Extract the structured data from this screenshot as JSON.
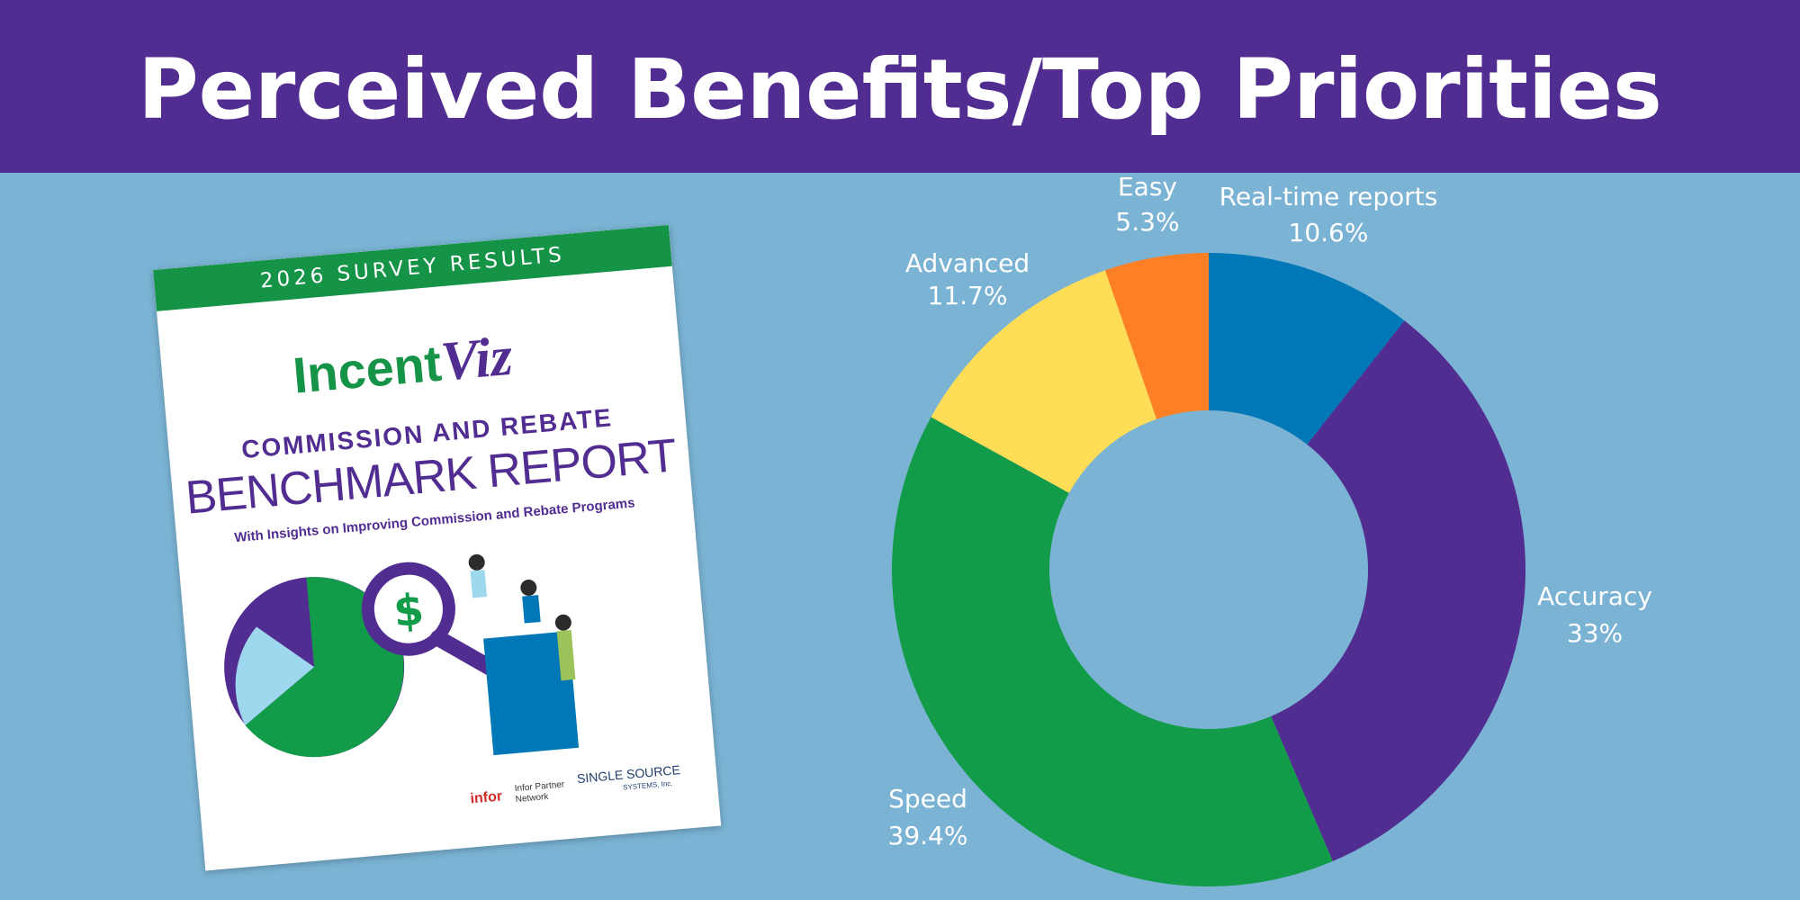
{
  "header": {
    "title": "Perceived Benefits/Top Priorities"
  },
  "cover": {
    "band": "2026 SURVEY RESULTS",
    "logo_part1": "Incent",
    "logo_part2": "Viz",
    "subtitle1": "COMMISSION AND REBATE",
    "subtitle2": "BENCHMARK REPORT",
    "subtitle3": "With Insights on Improving Commission and Rebate Programs",
    "partner1": "infor",
    "partner1_sub": "Infor Partner Network",
    "partner2": "SINGLE SOURCE",
    "partner2_sub": "SYSTEMS, Inc."
  },
  "chart_data": {
    "type": "pie",
    "title": "",
    "categories": [
      "Real-time reports",
      "Accuracy",
      "Speed",
      "Advanced",
      "Easy"
    ],
    "values": [
      10.6,
      33,
      39.4,
      11.7,
      5.3
    ],
    "labels": [
      "10.6%",
      "33%",
      "39.4%",
      "11.7%",
      "5.3%"
    ],
    "colors": [
      "#0077B6",
      "#522D91",
      "#129C49",
      "#FFDD57",
      "#FF7F24"
    ],
    "donut": true
  }
}
